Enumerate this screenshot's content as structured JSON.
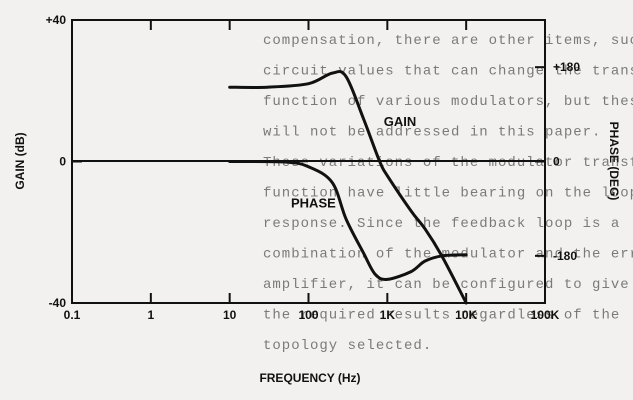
{
  "background_text": [
    "compensation, there are other items, such as",
    "circuit values that can change the transfer",
    "function of various modulators, but these",
    "will not be addressed in this paper.",
    "These variations of the modulator transfer",
    "function have little bearing on the loop",
    "response. Since the feedback loop is a",
    "combination of the modulator and the error",
    "amplifier, it can be configured to give",
    "the required results regardless of the",
    "topology selected."
  ],
  "chart_data": {
    "type": "line",
    "xlabel": "FREQUENCY (Hz)",
    "ylabel_left": "GAIN (dB)",
    "ylabel_right": "PHASE (DEG)",
    "x_scale": "log",
    "xlim": [
      0.1,
      100000
    ],
    "ylim_left": [
      -40,
      40
    ],
    "ylim_right": [
      -270,
      270
    ],
    "x_ticks": [
      {
        "value": 0.1,
        "label": "0.1"
      },
      {
        "value": 1,
        "label": "1"
      },
      {
        "value": 10,
        "label": "10"
      },
      {
        "value": 100,
        "label": "100"
      },
      {
        "value": 1000,
        "label": "1K"
      },
      {
        "value": 10000,
        "label": "10K"
      },
      {
        "value": 100000,
        "label": "100K"
      }
    ],
    "y_ticks_left": [
      {
        "value": 40,
        "label": "+40"
      },
      {
        "value": 0,
        "label": "0"
      },
      {
        "value": -40,
        "label": "-40"
      }
    ],
    "y_ticks_right": [
      {
        "value": 180,
        "label": "+180"
      },
      {
        "value": 0,
        "label": "0"
      },
      {
        "value": -180,
        "label": "-180"
      }
    ],
    "zero_line": true,
    "grid": false,
    "series": [
      {
        "name": "GAIN",
        "axis": "left",
        "points": [
          [
            10,
            21
          ],
          [
            30,
            21
          ],
          [
            100,
            22
          ],
          [
            200,
            25
          ],
          [
            300,
            24
          ],
          [
            500,
            12
          ],
          [
            800,
            0
          ],
          [
            1000,
            -4
          ],
          [
            2000,
            -14
          ],
          [
            3000,
            -19
          ],
          [
            5000,
            -27
          ],
          [
            10000,
            -40
          ]
        ]
      },
      {
        "name": "PHASE",
        "axis": "right",
        "points": [
          [
            10,
            0
          ],
          [
            50,
            -1
          ],
          [
            100,
            -10
          ],
          [
            200,
            -40
          ],
          [
            300,
            -110
          ],
          [
            500,
            -175
          ],
          [
            700,
            -215
          ],
          [
            1000,
            -225
          ],
          [
            2000,
            -210
          ],
          [
            3000,
            -190
          ],
          [
            5000,
            -180
          ],
          [
            10000,
            -178
          ]
        ]
      }
    ],
    "annotations": [
      {
        "text": "GAIN",
        "x": 900,
        "y_left": 10
      },
      {
        "text": "PHASE",
        "x": 60,
        "y_left": -13
      }
    ]
  }
}
